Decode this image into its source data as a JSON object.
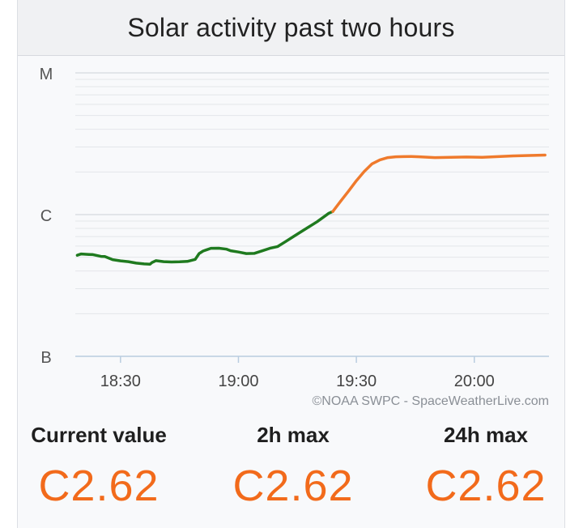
{
  "title": "Solar activity past two hours",
  "credit": "©NOAA SWPC - SpaceWeatherLive.com",
  "colors": {
    "below_c": "#1f7a1f",
    "c_class": "#ef7a2c",
    "value": "#f26a1b"
  },
  "stats": {
    "current_label": "Current value",
    "current_value": "C2.62",
    "max2h_label": "2h max",
    "max2h_value": "C2.62",
    "max24h_label": "24h max",
    "max24h_value": "C2.62"
  },
  "chart_data": {
    "type": "line",
    "title": "Solar activity past two hours",
    "xlabel": "",
    "ylabel": "",
    "x_ticks": [
      "18:30",
      "19:00",
      "19:30",
      "20:00"
    ],
    "x_tick_minutes": [
      0,
      30,
      60,
      90
    ],
    "x_range_minutes": [
      -11.5,
      109
    ],
    "y_ticks": [
      "B",
      "C",
      "M"
    ],
    "y_tick_values": [
      1,
      2,
      3
    ],
    "y_range": [
      1,
      3
    ],
    "log_scale": true,
    "grid": true,
    "series": [
      {
        "values_x": [
          -11,
          -10,
          -8,
          -7,
          -5,
          -4,
          -2,
          0,
          2,
          4,
          6,
          7.5,
          8,
          9,
          11,
          13,
          15,
          17,
          19,
          20,
          21,
          23,
          25,
          27,
          28,
          30,
          32,
          34,
          36,
          38,
          40,
          42,
          44,
          46,
          48,
          50,
          52,
          53,
          54
        ],
        "values_y": [
          1.713,
          1.722,
          1.719,
          1.718,
          1.705,
          1.704,
          1.682,
          1.674,
          1.668,
          1.658,
          1.652,
          1.65,
          1.662,
          1.675,
          1.668,
          1.666,
          1.667,
          1.67,
          1.684,
          1.725,
          1.743,
          1.762,
          1.763,
          1.756,
          1.745,
          1.736,
          1.725,
          1.726,
          1.744,
          1.762,
          1.775,
          1.81,
          1.845,
          1.88,
          1.915,
          1.95,
          1.99,
          2.01,
          2.022
        ]
      },
      {
        "values_x": [
          54,
          56,
          58,
          60,
          62,
          64,
          66,
          68,
          70,
          72,
          74,
          76,
          78,
          80,
          84,
          88,
          92,
          96,
          100,
          104,
          108
        ],
        "values_y": [
          2.022,
          2.095,
          2.165,
          2.239,
          2.304,
          2.358,
          2.386,
          2.402,
          2.408,
          2.409,
          2.41,
          2.408,
          2.405,
          2.402,
          2.404,
          2.406,
          2.404,
          2.409,
          2.414,
          2.417,
          2.42
        ]
      }
    ]
  }
}
